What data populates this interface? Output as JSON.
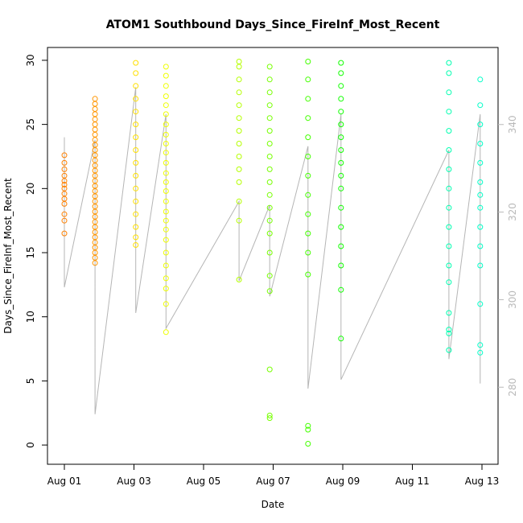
{
  "chart_data": {
    "type": "scatter",
    "title": "ATOM1 Southbound Days_Since_FireInf_Most_Recent",
    "xlabel": "Date",
    "ylabel": "Days_Since_FireInf_Most_Recent",
    "x_axis": {
      "ticks": [
        0,
        2,
        4,
        6,
        8,
        10,
        12
      ],
      "tick_labels": [
        "Aug 01",
        "Aug 03",
        "Aug 05",
        "Aug 07",
        "Aug 09",
        "Aug 11",
        "Aug 13"
      ]
    },
    "y_left": {
      "lim": [
        -1.5,
        31
      ],
      "ticks": [
        0,
        5,
        10,
        15,
        20,
        25,
        30
      ],
      "tick_labels": [
        "0",
        "5",
        "10",
        "15",
        "20",
        "25",
        "30"
      ]
    },
    "y_right": {
      "lim": [
        262.4,
        357.6
      ],
      "ticks": [
        280,
        300,
        320,
        340
      ],
      "tick_labels": [
        "280",
        "300",
        "320",
        "340"
      ],
      "color": "#b9b9b9"
    },
    "grid": false,
    "series": [
      {
        "x": 0.0,
        "color": "#FF8000",
        "points": [
          16.5,
          17.5,
          18.0,
          18.8,
          19.2,
          19.6,
          20.0,
          20.3,
          20.6,
          21.0,
          21.5,
          22.0,
          22.6
        ]
      },
      {
        "x": 0.88,
        "color": "#FF9500",
        "points": [
          14.2,
          14.6,
          15.0,
          15.4,
          15.8,
          16.2,
          16.6,
          17.0,
          17.4,
          17.8,
          18.2,
          18.6,
          19.0,
          19.4,
          19.8,
          20.2,
          20.6,
          21.0,
          21.4,
          21.8,
          22.2,
          22.6,
          23.0,
          23.4,
          23.8,
          24.2,
          24.6,
          25.0,
          25.4,
          25.8,
          26.2,
          26.6,
          27.0
        ]
      },
      {
        "x": 2.05,
        "color": "#FFE000",
        "points": [
          15.6,
          16.2,
          17.0,
          18.0,
          19.0,
          20.0,
          21.0,
          22.0,
          23.0,
          24.0,
          25.0,
          26.0,
          27.0,
          28.0,
          29.0,
          29.8
        ]
      },
      {
        "x": 2.92,
        "color": "#EEFF00",
        "points": [
          8.8,
          11.0,
          12.2,
          13.0,
          14.0,
          15.0,
          16.0,
          16.8,
          17.5,
          18.2,
          19.0,
          19.8,
          20.5,
          21.2,
          22.0,
          22.8,
          23.5,
          24.2,
          25.0,
          25.8,
          26.5,
          27.2,
          28.0,
          28.8,
          29.5
        ]
      },
      {
        "x": 5.02,
        "color": "#B5FF00",
        "points": [
          12.9,
          17.5,
          19.0,
          20.5,
          21.5,
          22.5,
          23.5,
          24.5,
          25.5,
          26.5,
          27.5,
          28.5,
          29.5,
          29.9
        ]
      },
      {
        "x": 5.9,
        "color": "#77FF00",
        "points": [
          2.1,
          2.3,
          5.9,
          12.0,
          13.2,
          15.0,
          16.5,
          17.5,
          18.5,
          19.5,
          20.5,
          21.5,
          22.5,
          23.5,
          24.5,
          25.5,
          26.5,
          27.5,
          28.5,
          29.5
        ]
      },
      {
        "x": 7.0,
        "color": "#44FF00",
        "points": [
          0.1,
          1.2,
          1.5,
          13.3,
          15.0,
          16.5,
          18.0,
          19.5,
          21.0,
          22.5,
          24.0,
          25.5,
          27.0,
          28.5,
          29.9
        ]
      },
      {
        "x": 7.95,
        "color": "#10FF00",
        "points": [
          8.3,
          12.1,
          14.0,
          15.5,
          17.0,
          18.5,
          20.0,
          21.0,
          22.0,
          23.0,
          24.0,
          25.0,
          26.0,
          27.0,
          28.0,
          29.0,
          29.8
        ]
      },
      {
        "x": 11.05,
        "color": "#00FFB0",
        "points": [
          7.4,
          8.7,
          9.0,
          10.3,
          12.7,
          14.0,
          15.5,
          17.0,
          18.5,
          20.0,
          21.5,
          23.0,
          24.5,
          26.0,
          27.5,
          29.0,
          29.8
        ]
      },
      {
        "x": 11.95,
        "color": "#00FFC8",
        "points": [
          7.2,
          7.8,
          11.0,
          14.0,
          15.5,
          17.0,
          18.5,
          19.5,
          20.5,
          22.0,
          23.5,
          25.0,
          26.5,
          28.5
        ]
      }
    ],
    "gray_line": {
      "color": "#b5b5b5",
      "points": [
        [
          0.0,
          24.0
        ],
        [
          0.0,
          12.3
        ],
        [
          0.88,
          23.8
        ],
        [
          0.88,
          2.4
        ],
        [
          2.05,
          27.9
        ],
        [
          2.05,
          10.3
        ],
        [
          2.92,
          25.8
        ],
        [
          2.92,
          9.1
        ],
        [
          5.02,
          19.0
        ],
        [
          5.02,
          12.8
        ],
        [
          5.9,
          18.7
        ],
        [
          5.9,
          11.6
        ],
        [
          7.0,
          23.3
        ],
        [
          7.0,
          4.4
        ],
        [
          7.95,
          25.8
        ],
        [
          7.95,
          5.1
        ],
        [
          11.05,
          23.0
        ],
        [
          11.05,
          6.7
        ],
        [
          11.95,
          25.8
        ],
        [
          11.95,
          4.8
        ]
      ]
    }
  }
}
